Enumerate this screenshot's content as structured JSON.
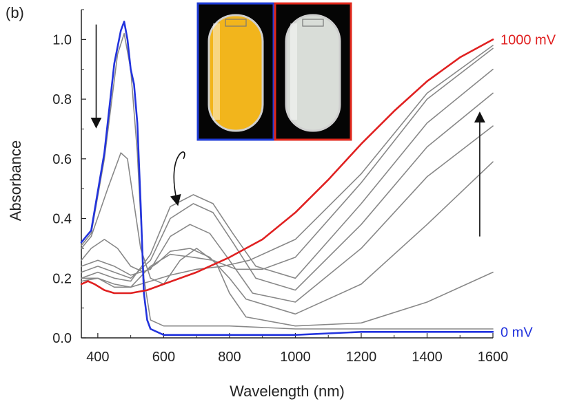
{
  "panel_label": "(b)",
  "chart_data": {
    "type": "line",
    "xlabel": "Wavelength (nm)",
    "ylabel": "Absorbance",
    "xlim": [
      350,
      1600
    ],
    "ylim": [
      0.0,
      1.1
    ],
    "xticks": [
      400,
      600,
      800,
      1000,
      1200,
      1400,
      1600
    ],
    "xtick_labels": [
      "400",
      "600",
      "800",
      "1000",
      "1200",
      "1400",
      "1600"
    ],
    "yticks": [
      0.0,
      0.2,
      0.4,
      0.6,
      0.8,
      1.0
    ],
    "ytick_labels": [
      "0.0",
      "0.2",
      "0.4",
      "0.6",
      "0.8",
      "1.0"
    ],
    "grid": false,
    "series": [
      {
        "name": "0 mV",
        "color": "#2233dd",
        "x": [
          350,
          380,
          420,
          450,
          470,
          480,
          490,
          500,
          510,
          520,
          530,
          540,
          550,
          560,
          600,
          700,
          800,
          1000,
          1200,
          1400,
          1600
        ],
        "y": [
          0.32,
          0.36,
          0.62,
          0.92,
          1.03,
          1.06,
          1.0,
          0.9,
          0.85,
          0.72,
          0.45,
          0.15,
          0.06,
          0.03,
          0.01,
          0.01,
          0.01,
          0.01,
          0.02,
          0.02,
          0.02
        ]
      },
      {
        "color": "#888888",
        "x": [
          350,
          380,
          420,
          460,
          480,
          500,
          520,
          540,
          560,
          600,
          700,
          800,
          1000,
          1200,
          1400,
          1600
        ],
        "y": [
          0.31,
          0.35,
          0.6,
          0.95,
          1.02,
          0.9,
          0.62,
          0.2,
          0.06,
          0.04,
          0.04,
          0.04,
          0.03,
          0.03,
          0.03,
          0.03
        ]
      },
      {
        "color": "#888888",
        "x": [
          350,
          380,
          430,
          470,
          490,
          510,
          530,
          560,
          600,
          650,
          700,
          760,
          800,
          850,
          1000,
          1200,
          1400,
          1600
        ],
        "y": [
          0.3,
          0.34,
          0.5,
          0.62,
          0.6,
          0.45,
          0.3,
          0.2,
          0.18,
          0.26,
          0.3,
          0.25,
          0.15,
          0.07,
          0.04,
          0.05,
          0.12,
          0.22
        ]
      },
      {
        "color": "#888888",
        "x": [
          350,
          380,
          420,
          460,
          500,
          540,
          580,
          620,
          680,
          740,
          800,
          850,
          1000,
          1200,
          1400,
          1600
        ],
        "y": [
          0.26,
          0.3,
          0.33,
          0.3,
          0.24,
          0.22,
          0.25,
          0.29,
          0.3,
          0.27,
          0.2,
          0.13,
          0.08,
          0.18,
          0.38,
          0.59
        ]
      },
      {
        "color": "#888888",
        "x": [
          350,
          400,
          450,
          500,
          560,
          620,
          680,
          740,
          800,
          870,
          1000,
          1200,
          1400,
          1600
        ],
        "y": [
          0.24,
          0.26,
          0.24,
          0.21,
          0.23,
          0.34,
          0.38,
          0.35,
          0.26,
          0.15,
          0.12,
          0.3,
          0.54,
          0.71
        ]
      },
      {
        "color": "#888888",
        "x": [
          350,
          400,
          450,
          500,
          560,
          620,
          690,
          750,
          810,
          880,
          1000,
          1200,
          1400,
          1600
        ],
        "y": [
          0.22,
          0.24,
          0.22,
          0.2,
          0.26,
          0.4,
          0.45,
          0.42,
          0.32,
          0.2,
          0.16,
          0.38,
          0.64,
          0.82
        ]
      },
      {
        "color": "#888888",
        "x": [
          350,
          400,
          450,
          500,
          560,
          620,
          690,
          750,
          810,
          880,
          1000,
          1200,
          1400,
          1600
        ],
        "y": [
          0.2,
          0.22,
          0.2,
          0.19,
          0.28,
          0.44,
          0.48,
          0.45,
          0.35,
          0.24,
          0.2,
          0.45,
          0.72,
          0.9
        ]
      },
      {
        "color": "#888888",
        "x": [
          350,
          400,
          450,
          500,
          560,
          620,
          690,
          750,
          820,
          900,
          1000,
          1200,
          1400,
          1600
        ],
        "y": [
          0.19,
          0.2,
          0.18,
          0.17,
          0.24,
          0.28,
          0.27,
          0.26,
          0.23,
          0.23,
          0.27,
          0.52,
          0.8,
          0.97
        ]
      },
      {
        "color": "#888888",
        "x": [
          350,
          400,
          450,
          500,
          560,
          620,
          700,
          780,
          860,
          940,
          1000,
          1200,
          1400,
          1600
        ],
        "y": [
          0.2,
          0.2,
          0.17,
          0.17,
          0.19,
          0.21,
          0.23,
          0.24,
          0.26,
          0.3,
          0.33,
          0.55,
          0.82,
          0.98
        ]
      },
      {
        "name": "1000 mV",
        "color": "#e02020",
        "x": [
          350,
          370,
          390,
          420,
          450,
          500,
          550,
          600,
          700,
          800,
          900,
          1000,
          1100,
          1200,
          1300,
          1400,
          1500,
          1600
        ],
        "y": [
          0.18,
          0.19,
          0.18,
          0.16,
          0.15,
          0.15,
          0.16,
          0.18,
          0.22,
          0.27,
          0.33,
          0.42,
          0.53,
          0.65,
          0.76,
          0.86,
          0.94,
          1.0
        ]
      }
    ],
    "annotations": [
      {
        "type": "arrow",
        "direction": "down",
        "x": 395,
        "y_from": 1.05,
        "y_to": 0.72
      },
      {
        "type": "curved-arrow",
        "direction": "down-left",
        "x_from": 660,
        "y_from": 0.6,
        "x_to": 640,
        "y_to": 0.46
      },
      {
        "type": "arrow",
        "direction": "up",
        "x": 1560,
        "y_from": 0.34,
        "y_to": 0.74
      }
    ],
    "inset": {
      "description": "two vial photos",
      "left_frame_color": "#1e3bd6",
      "left_fill_color": "#f2b51c",
      "right_frame_color": "#e0281c",
      "right_fill_color": "#d9ddd8"
    }
  }
}
